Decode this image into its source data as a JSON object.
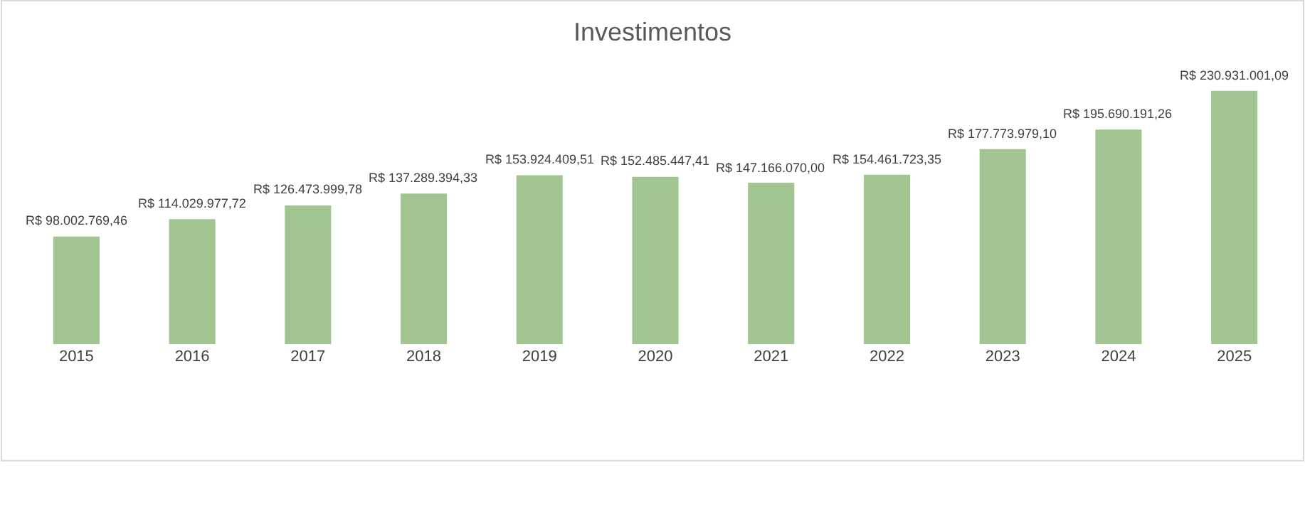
{
  "chart_data": {
    "type": "bar",
    "title": "Investimentos",
    "categories": [
      "2015",
      "2016",
      "2017",
      "2018",
      "2019",
      "2020",
      "2021",
      "2022",
      "2023",
      "2024",
      "2025"
    ],
    "values": [
      98002769.46,
      114029977.72,
      126473999.78,
      137289394.33,
      153924409.51,
      152485447.41,
      147166070.0,
      154461723.35,
      177773979.1,
      195690191.26,
      230931001.09
    ],
    "value_labels": [
      "R$ 98.002.769,46",
      "R$ 114.029.977,72",
      "R$ 126.473.999,78",
      "R$ 137.289.394,33",
      "R$ 153.924.409,51",
      "R$ 152.485.447,41",
      "R$ 147.166.070,00",
      "R$ 154.461.723,35",
      "R$ 177.773.979,10",
      "R$ 195.690.191,26",
      "R$ 230.931.001,09"
    ],
    "color": "#a2c490"
  }
}
